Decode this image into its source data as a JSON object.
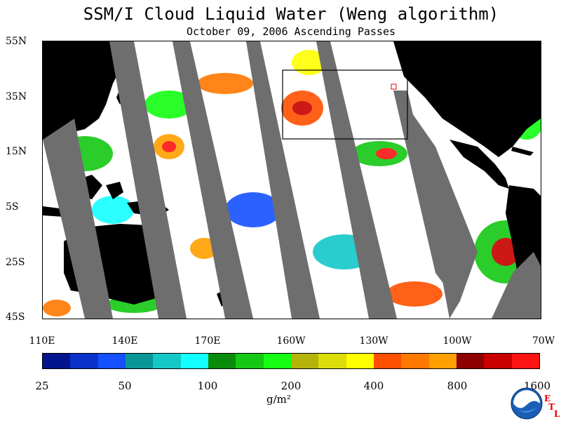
{
  "title": "SSM/I Cloud Liquid Water (Weng algorithm)",
  "subtitle": "October 09, 2006  Ascending Passes",
  "map": {
    "lat_labels": [
      "55N",
      "35N",
      "15N",
      "5S",
      "25S",
      "45S"
    ],
    "lon_labels": [
      "110E",
      "140E",
      "170E",
      "160W",
      "130W",
      "100W",
      "70W"
    ],
    "land_color": "#000000",
    "missing_swath_color": "#6e6e6e",
    "ocean_background_color": "#ffffff"
  },
  "colorbar": {
    "colors": [
      "#04148c",
      "#0a32c8",
      "#1450ff",
      "#0a9696",
      "#14c8c8",
      "#14ffff",
      "#0a8c0a",
      "#14c814",
      "#14ff14",
      "#b4b40a",
      "#dcdc0a",
      "#ffff00",
      "#ff5000",
      "#ff7800",
      "#ffa000",
      "#8c0000",
      "#c80000",
      "#ff1414"
    ],
    "tick_labels": [
      "25",
      "50",
      "100",
      "200",
      "400",
      "800",
      "1600"
    ],
    "units": "g/m²"
  },
  "logo": {
    "name": "NOAA",
    "etl_letters": [
      "E",
      "T",
      "L"
    ]
  }
}
